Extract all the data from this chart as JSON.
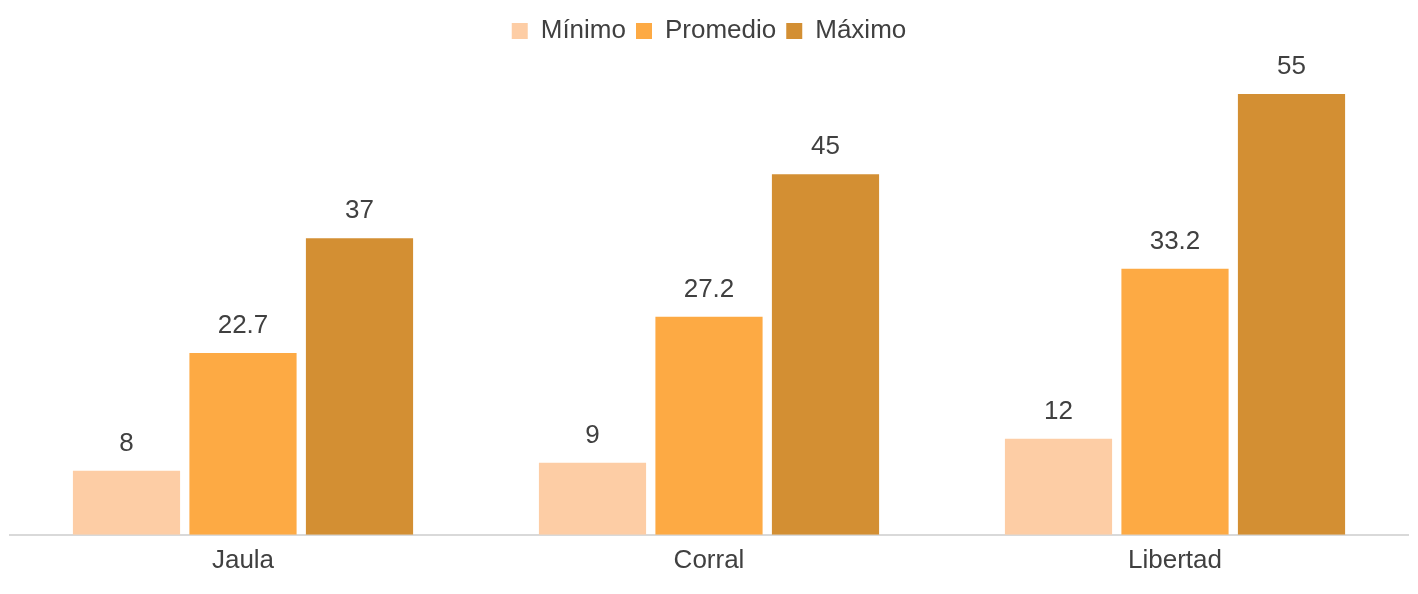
{
  "chart_data": {
    "type": "bar",
    "categories": [
      "Jaula",
      "Corral",
      "Libertad"
    ],
    "series": [
      {
        "name": "Mínimo",
        "color": "#fdcda5",
        "values": [
          8,
          9,
          12
        ]
      },
      {
        "name": "Promedio",
        "color": "#fdaa44",
        "values": [
          22.7,
          27.2,
          33.2
        ]
      },
      {
        "name": "Máximo",
        "color": "#d38f33",
        "values": [
          37,
          45,
          55
        ]
      }
    ],
    "data_labels": true,
    "legend": "top",
    "grid": false
  }
}
